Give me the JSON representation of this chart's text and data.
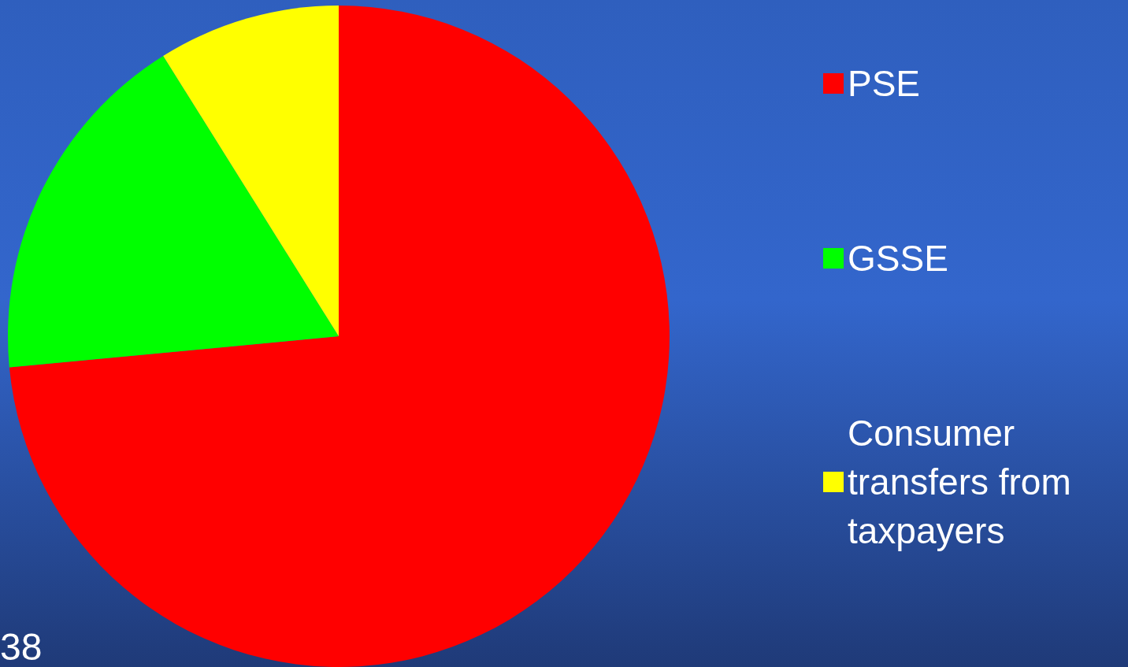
{
  "chart_data": {
    "type": "pie",
    "categories": [
      "PSE",
      "GSSE",
      "Consumer transfers from taxpayers"
    ],
    "values": [
      73.5,
      17.6,
      8.9
    ],
    "colors": [
      "#ff0000",
      "#00ff00",
      "#ffff00"
    ],
    "legend": "right",
    "annotations": [
      "38"
    ]
  }
}
